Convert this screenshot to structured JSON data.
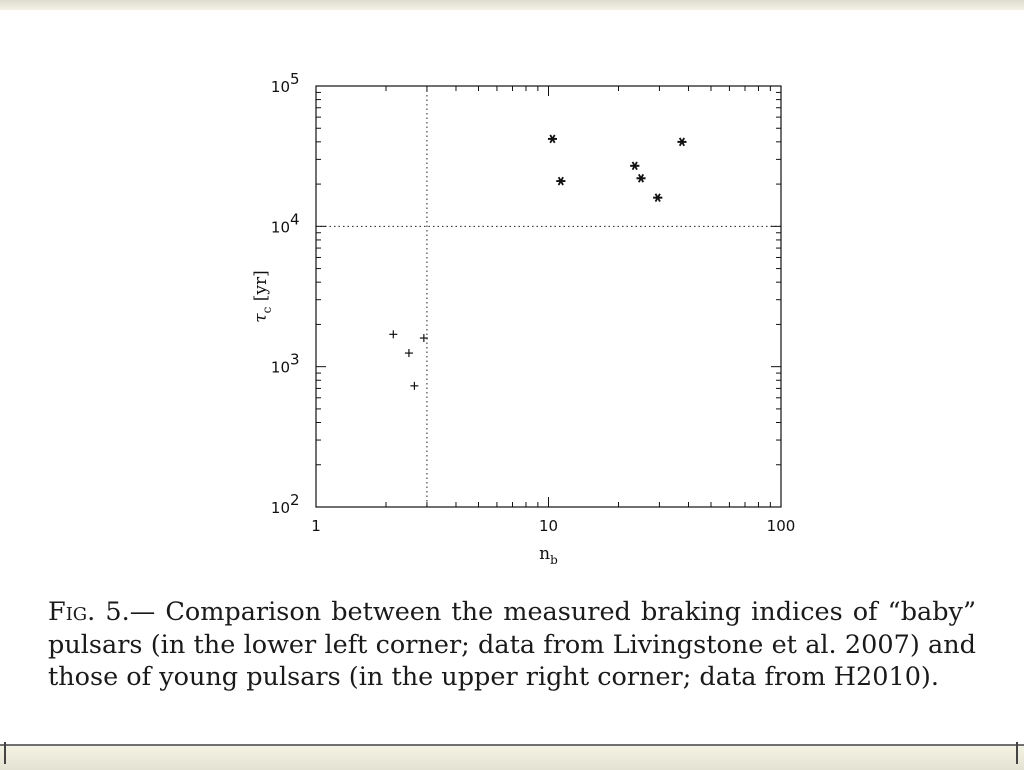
{
  "caption": {
    "fig_label": "Fig. 5.",
    "text": "— Comparison between the measured braking indices of “baby” pulsars (in the lower left corner; data from Livingstone et al. 2007) and those of young pulsars (in the upper right corner; data from H2010)."
  },
  "chart_data": {
    "type": "scatter",
    "xlabel": "n_b",
    "ylabel": "τ_c [yr]",
    "xscale": "log",
    "yscale": "log",
    "xlim": [
      1,
      100
    ],
    "ylim": [
      100,
      100000
    ],
    "x_tick_labels": [
      "1",
      "10",
      "100"
    ],
    "y_tick_labels": [
      {
        "base": "10",
        "exp": "2"
      },
      {
        "base": "10",
        "exp": "3"
      },
      {
        "base": "10",
        "exp": "4"
      },
      {
        "base": "10",
        "exp": "5"
      }
    ],
    "reference_lines": {
      "vertical_x": 3,
      "horizontal_y": 10000,
      "style": "dotted"
    },
    "grid": false,
    "series": [
      {
        "marker": "plus",
        "points": [
          {
            "x": 2.15,
            "y": 1700
          },
          {
            "x": 2.51,
            "y": 1250
          },
          {
            "x": 2.65,
            "y": 730
          },
          {
            "x": 2.91,
            "y": 1600
          }
        ]
      },
      {
        "marker": "asterisk",
        "points": [
          {
            "x": 10.4,
            "y": 42000
          },
          {
            "x": 11.3,
            "y": 21000
          },
          {
            "x": 23.5,
            "y": 27000
          },
          {
            "x": 25.0,
            "y": 22000
          },
          {
            "x": 29.5,
            "y": 16000
          },
          {
            "x": 37.5,
            "y": 40000
          }
        ]
      }
    ]
  }
}
